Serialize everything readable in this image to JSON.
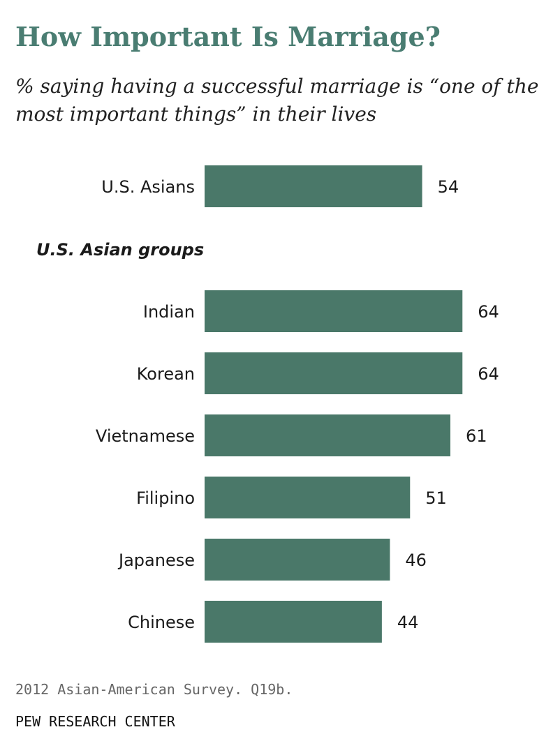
{
  "chart_data": {
    "type": "bar",
    "orientation": "horizontal",
    "title": "How Important Is Marriage?",
    "subtitle": "% saying having a successful marriage is “one of the most important things” in their lives",
    "group_heading": "U.S. Asian groups",
    "categories": [
      "U.S. Asians",
      "Indian",
      "Korean",
      "Vietnamese",
      "Filipino",
      "Japanese",
      "Chinese"
    ],
    "values": [
      54,
      64,
      64,
      61,
      51,
      46,
      44
    ],
    "bar_color": "#4a7869",
    "grid": false,
    "legend": "none"
  },
  "footer": {
    "source": "2012 Asian-American Survey. Q19b.",
    "org": "PEW RESEARCH CENTER"
  }
}
